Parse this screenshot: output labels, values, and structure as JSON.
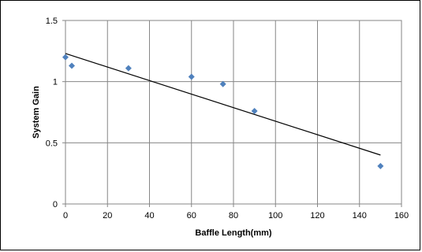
{
  "chart_data": {
    "type": "scatter",
    "title": "",
    "xlabel": "Baffle Length(mm)",
    "ylabel": "System Gain",
    "xlim": [
      0,
      160
    ],
    "ylim": [
      0,
      1.5
    ],
    "x_ticks": [
      0,
      20,
      40,
      60,
      80,
      100,
      120,
      140,
      160
    ],
    "y_ticks": [
      0,
      0.5,
      1,
      1.5
    ],
    "x_tick_labels": [
      "0",
      "20",
      "40",
      "60",
      "80",
      "100",
      "120",
      "140",
      "160"
    ],
    "y_tick_labels": [
      "0",
      "0.5",
      "1",
      "1.5"
    ],
    "grid": true,
    "legend": "none",
    "marker_color": "#4f81bd",
    "series": [
      {
        "marker": "diamond",
        "x": [
          0,
          3,
          30,
          60,
          75,
          90,
          150
        ],
        "y": [
          1.2,
          1.13,
          1.11,
          1.04,
          0.98,
          0.76,
          0.31
        ]
      }
    ],
    "trendline": {
      "type": "linear",
      "color": "#000000",
      "x": [
        0,
        150
      ],
      "y": [
        1.23,
        0.4
      ]
    }
  }
}
